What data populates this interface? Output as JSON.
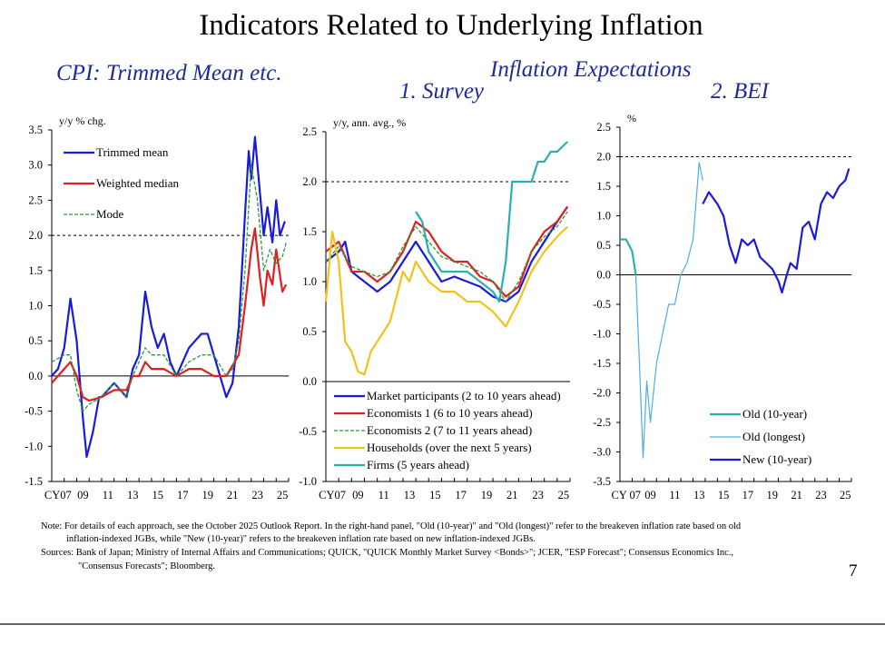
{
  "title": "Indicators Related to Underlying Inflation",
  "subtitles": {
    "left": "CPI: Trimmed Mean etc.",
    "center_top": "Inflation Expectations",
    "center": "1. Survey",
    "right": "2. BEI"
  },
  "notes": {
    "line1": "Note: For details of each approach, see the October 2025 Outlook Report. In the right-hand panel, \"Old (10-year)\" and \"Old (longest)\" refer to the breakeven inflation rate based on old",
    "line2": "inflation-indexed JGBs, while \"New (10-year)\" refers to the breakeven inflation rate based on new inflation-indexed JGBs.",
    "line3": "Sources: Bank of Japan; Ministry of Internal Affairs and Communications; QUICK, \"QUICK Monthly Market Survey <Bonds>\"; JCER, \"ESP Forecast\"; Consensus Economics Inc.,",
    "line4": "\"Consensus Forecasts\"; Bloomberg."
  },
  "page_number": "7",
  "chart_data": [
    {
      "type": "line",
      "ylabel": "y/y % chg.",
      "ylim": [
        -1.5,
        3.5
      ],
      "yticks": [
        "3.5",
        "3.0",
        "2.5",
        "2.0",
        "1.5",
        "1.0",
        "0.5",
        "0.0",
        "-0.5",
        "-1.0",
        "-1.5"
      ],
      "xticks": [
        "CY07",
        "09",
        "11",
        "13",
        "15",
        "17",
        "19",
        "21",
        "23",
        "25"
      ],
      "reference_line": 2.0,
      "legend": "top-left",
      "series": [
        {
          "name": "Trimmed mean",
          "color": "#1a1adb",
          "style": "solid",
          "x": [
            2007,
            2007.5,
            2008,
            2008.5,
            2009,
            2009.5,
            2009.8,
            2010.3,
            2010.8,
            2011,
            2011.5,
            2012,
            2012.5,
            2013,
            2013.5,
            2014,
            2014.5,
            2015,
            2015.5,
            2016,
            2016.5,
            2017,
            2017.5,
            2018,
            2018.5,
            2019,
            2019.5,
            2020,
            2020.5,
            2021,
            2021.5,
            2022,
            2022.5,
            2022.8,
            2023,
            2023.3,
            2023.7,
            2024,
            2024.3,
            2024.7,
            2025,
            2025.3,
            2025.7
          ],
          "y": [
            0.0,
            0.1,
            0.4,
            1.1,
            0.5,
            -0.6,
            -1.15,
            -0.8,
            -0.3,
            -0.3,
            -0.2,
            -0.1,
            -0.2,
            -0.3,
            0.1,
            0.3,
            1.2,
            0.7,
            0.4,
            0.6,
            0.2,
            0.0,
            0.2,
            0.4,
            0.5,
            0.6,
            0.6,
            0.3,
            0.0,
            -0.3,
            -0.1,
            0.7,
            2.3,
            3.2,
            2.8,
            3.4,
            2.6,
            2.0,
            2.4,
            1.9,
            2.5,
            2.0,
            2.2
          ]
        },
        {
          "name": "Weighted median",
          "color": "#e02020",
          "style": "solid",
          "x": [
            2007,
            2008,
            2008.5,
            2009,
            2009.5,
            2010,
            2011,
            2012,
            2013,
            2013.5,
            2014,
            2014.5,
            2015,
            2016,
            2017,
            2018,
            2019,
            2020,
            2021,
            2022,
            2022.5,
            2023,
            2023.3,
            2023.7,
            2024,
            2024.3,
            2024.7,
            2025,
            2025.5,
            2025.8
          ],
          "y": [
            -0.1,
            0.1,
            0.2,
            0.0,
            -0.3,
            -0.35,
            -0.3,
            -0.2,
            -0.2,
            0.0,
            0.0,
            0.2,
            0.1,
            0.1,
            0.0,
            0.1,
            0.1,
            0.0,
            0.0,
            0.3,
            1.0,
            1.8,
            2.1,
            1.4,
            1.0,
            1.5,
            1.3,
            1.8,
            1.2,
            1.3
          ]
        },
        {
          "name": "Mode",
          "color": "#2a9a3a",
          "style": "dashed",
          "x": [
            2007,
            2008,
            2008.5,
            2009,
            2009.5,
            2010,
            2011,
            2012,
            2013,
            2013.5,
            2014,
            2014.5,
            2015,
            2016,
            2017,
            2018,
            2019,
            2020,
            2021,
            2021.5,
            2022,
            2022.5,
            2023,
            2023.5,
            2024,
            2024.5,
            2025,
            2025.5,
            2025.8
          ],
          "y": [
            0.2,
            0.3,
            0.3,
            -0.2,
            -0.5,
            -0.4,
            -0.3,
            -0.1,
            -0.3,
            0.0,
            0.2,
            0.4,
            0.3,
            0.3,
            0.0,
            0.2,
            0.3,
            0.3,
            0.0,
            0.1,
            0.5,
            1.5,
            3.0,
            2.5,
            1.5,
            1.8,
            1.6,
            1.7,
            1.9
          ]
        }
      ]
    },
    {
      "type": "line",
      "ylabel": "y/y, ann. avg., %",
      "ylim": [
        -1.0,
        2.5
      ],
      "yticks": [
        "2.5",
        "2.0",
        "1.5",
        "1.0",
        "0.5",
        "0.0",
        "-0.5",
        "-1.0"
      ],
      "xticks": [
        "CY07",
        "09",
        "11",
        "13",
        "15",
        "17",
        "19",
        "21",
        "23",
        "25"
      ],
      "reference_line": 2.0,
      "legend": "bottom",
      "series": [
        {
          "name": "Market participants (2 to 10 years ahead)",
          "color": "#1a1adb",
          "style": "solid",
          "x": [
            2007,
            2008,
            2008.5,
            2009,
            2010,
            2011,
            2012,
            2013,
            2014,
            2015,
            2016,
            2017,
            2018,
            2019,
            2020,
            2021,
            2022,
            2023,
            2024,
            2025,
            2025.8
          ],
          "y": [
            1.2,
            1.3,
            1.4,
            1.1,
            1.0,
            0.9,
            1.0,
            1.2,
            1.4,
            1.2,
            1.0,
            1.05,
            1.0,
            0.95,
            0.85,
            0.8,
            0.9,
            1.2,
            1.4,
            1.6,
            1.75
          ]
        },
        {
          "name": "Economists 1 (6 to 10 years ahead)",
          "color": "#e02020",
          "style": "solid",
          "x": [
            2007,
            2008,
            2009,
            2010,
            2011,
            2012,
            2013,
            2014,
            2015,
            2016,
            2017,
            2018,
            2019,
            2020,
            2021,
            2022,
            2023,
            2024,
            2025,
            2025.8
          ],
          "y": [
            1.3,
            1.4,
            1.1,
            1.1,
            1.0,
            1.1,
            1.3,
            1.6,
            1.5,
            1.3,
            1.2,
            1.2,
            1.05,
            1.0,
            0.85,
            0.95,
            1.3,
            1.5,
            1.6,
            1.75
          ]
        },
        {
          "name": "Economists 2 (7 to 11 years ahead)",
          "color": "#2a9a3a",
          "style": "dashed",
          "x": [
            2007,
            2008,
            2009,
            2010,
            2011,
            2012,
            2013,
            2014,
            2015,
            2016,
            2017,
            2018,
            2019,
            2020,
            2021,
            2022,
            2023,
            2024,
            2025,
            2025.8
          ],
          "y": [
            1.2,
            1.35,
            1.15,
            1.1,
            1.05,
            1.1,
            1.35,
            1.55,
            1.4,
            1.25,
            1.2,
            1.15,
            1.1,
            1.0,
            0.8,
            1.0,
            1.3,
            1.45,
            1.55,
            1.7
          ]
        },
        {
          "name": "Households (over the next 5 years)",
          "color": "#f2c21b",
          "style": "solid",
          "x": [
            2007,
            2007.5,
            2008,
            2008.5,
            2009,
            2009.5,
            2010,
            2010.5,
            2011,
            2012,
            2013,
            2013.5,
            2014,
            2015,
            2016,
            2017,
            2018,
            2019,
            2020,
            2021,
            2022,
            2023,
            2024,
            2025,
            2025.8
          ],
          "y": [
            0.8,
            1.5,
            1.2,
            0.4,
            0.3,
            0.1,
            0.07,
            0.3,
            0.4,
            0.6,
            1.1,
            1.0,
            1.2,
            1.0,
            0.9,
            0.9,
            0.8,
            0.8,
            0.7,
            0.55,
            0.8,
            1.1,
            1.3,
            1.45,
            1.55
          ]
        },
        {
          "name": "Firms (5 years ahead)",
          "color": "#2ab0b0",
          "style": "solid",
          "x": [
            2014,
            2014.5,
            2015,
            2016,
            2017,
            2018,
            2019,
            2020,
            2020.5,
            2021,
            2021.5,
            2022,
            2023,
            2023.5,
            2024,
            2024.5,
            2025,
            2025.8
          ],
          "y": [
            1.7,
            1.6,
            1.3,
            1.1,
            1.1,
            1.1,
            1.0,
            0.9,
            0.8,
            1.2,
            2.0,
            2.0,
            2.0,
            2.2,
            2.2,
            2.3,
            2.3,
            2.4
          ]
        }
      ]
    },
    {
      "type": "line",
      "ylabel": "%",
      "ylim": [
        -3.5,
        2.5
      ],
      "yticks": [
        "2.5",
        "2.0",
        "1.5",
        "1.0",
        "0.5",
        "0.0",
        "-0.5",
        "-1.0",
        "-1.5",
        "-2.0",
        "-2.5",
        "-3.0",
        "-3.5"
      ],
      "xticks": [
        "CY 07",
        "09",
        "11",
        "13",
        "15",
        "17",
        "19",
        "21",
        "23",
        "25"
      ],
      "reference_line": 2.0,
      "legend": "bottom-right",
      "series": [
        {
          "name": "Old (10-year)",
          "color": "#2ab0b0",
          "style": "solid",
          "x": [
            2007,
            2007.5,
            2008,
            2008.3
          ],
          "y": [
            0.6,
            0.6,
            0.4,
            0.0
          ]
        },
        {
          "name": "Old (longest)",
          "color": "#4aaee8",
          "style": "thin",
          "x": [
            2008.3,
            2008.6,
            2008.9,
            2009.2,
            2009.5,
            2010,
            2010.5,
            2011,
            2011.5,
            2012,
            2012.5,
            2013,
            2013.5,
            2013.8
          ],
          "y": [
            0.0,
            -1.5,
            -3.1,
            -1.8,
            -2.5,
            -1.5,
            -1.0,
            -0.5,
            -0.5,
            0.0,
            0.2,
            0.6,
            1.9,
            1.6
          ]
        },
        {
          "name": "New (10-year)",
          "color": "#1a1adb",
          "style": "solid",
          "x": [
            2013.8,
            2014.3,
            2015,
            2015.5,
            2016,
            2016.5,
            2017,
            2017.5,
            2018,
            2018.5,
            2019,
            2019.5,
            2020,
            2020.3,
            2020.7,
            2021,
            2021.5,
            2022,
            2022.5,
            2023,
            2023.5,
            2024,
            2024.5,
            2025,
            2025.5,
            2025.8
          ],
          "y": [
            1.2,
            1.4,
            1.2,
            1.0,
            0.5,
            0.2,
            0.6,
            0.5,
            0.6,
            0.3,
            0.2,
            0.1,
            -0.1,
            -0.3,
            0.0,
            0.2,
            0.1,
            0.8,
            0.9,
            0.6,
            1.2,
            1.4,
            1.3,
            1.5,
            1.6,
            1.8
          ]
        }
      ]
    }
  ]
}
